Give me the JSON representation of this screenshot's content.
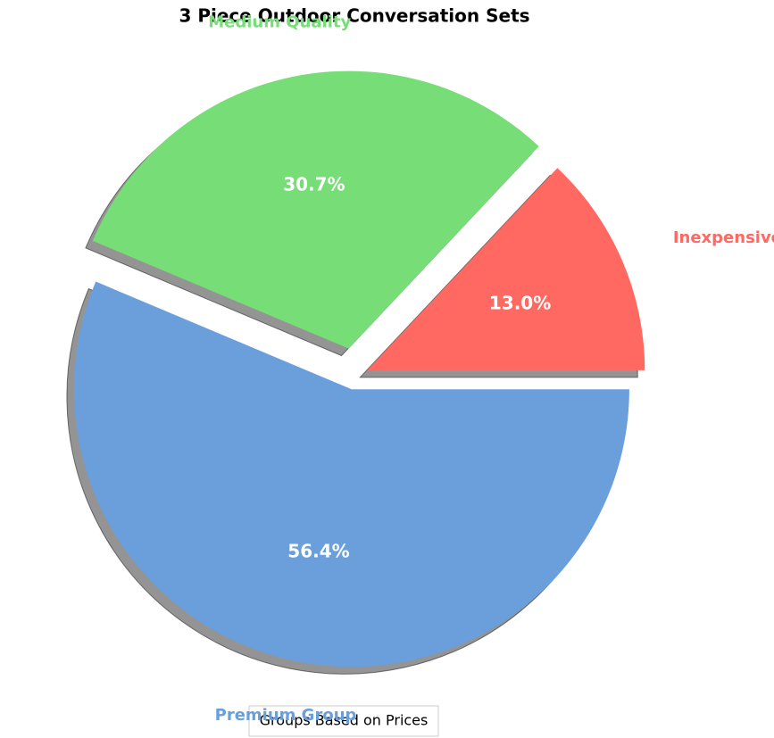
{
  "chart_data": {
    "type": "pie",
    "title": "3 Piece Outdoor Conversation Sets",
    "categories": [
      "Inexpensive Group",
      "Medium Quality",
      "Premium Group"
    ],
    "values": [
      13.0,
      30.7,
      56.4
    ],
    "value_labels": [
      "13.0%",
      "30.7%",
      "56.4%"
    ],
    "colors": [
      "#ff6961",
      "#77dd77",
      "#6a9fdc"
    ],
    "explode": [
      0.05,
      0.1,
      0.05
    ],
    "shadow": true,
    "legend_title": "Groups Based on Prices"
  }
}
